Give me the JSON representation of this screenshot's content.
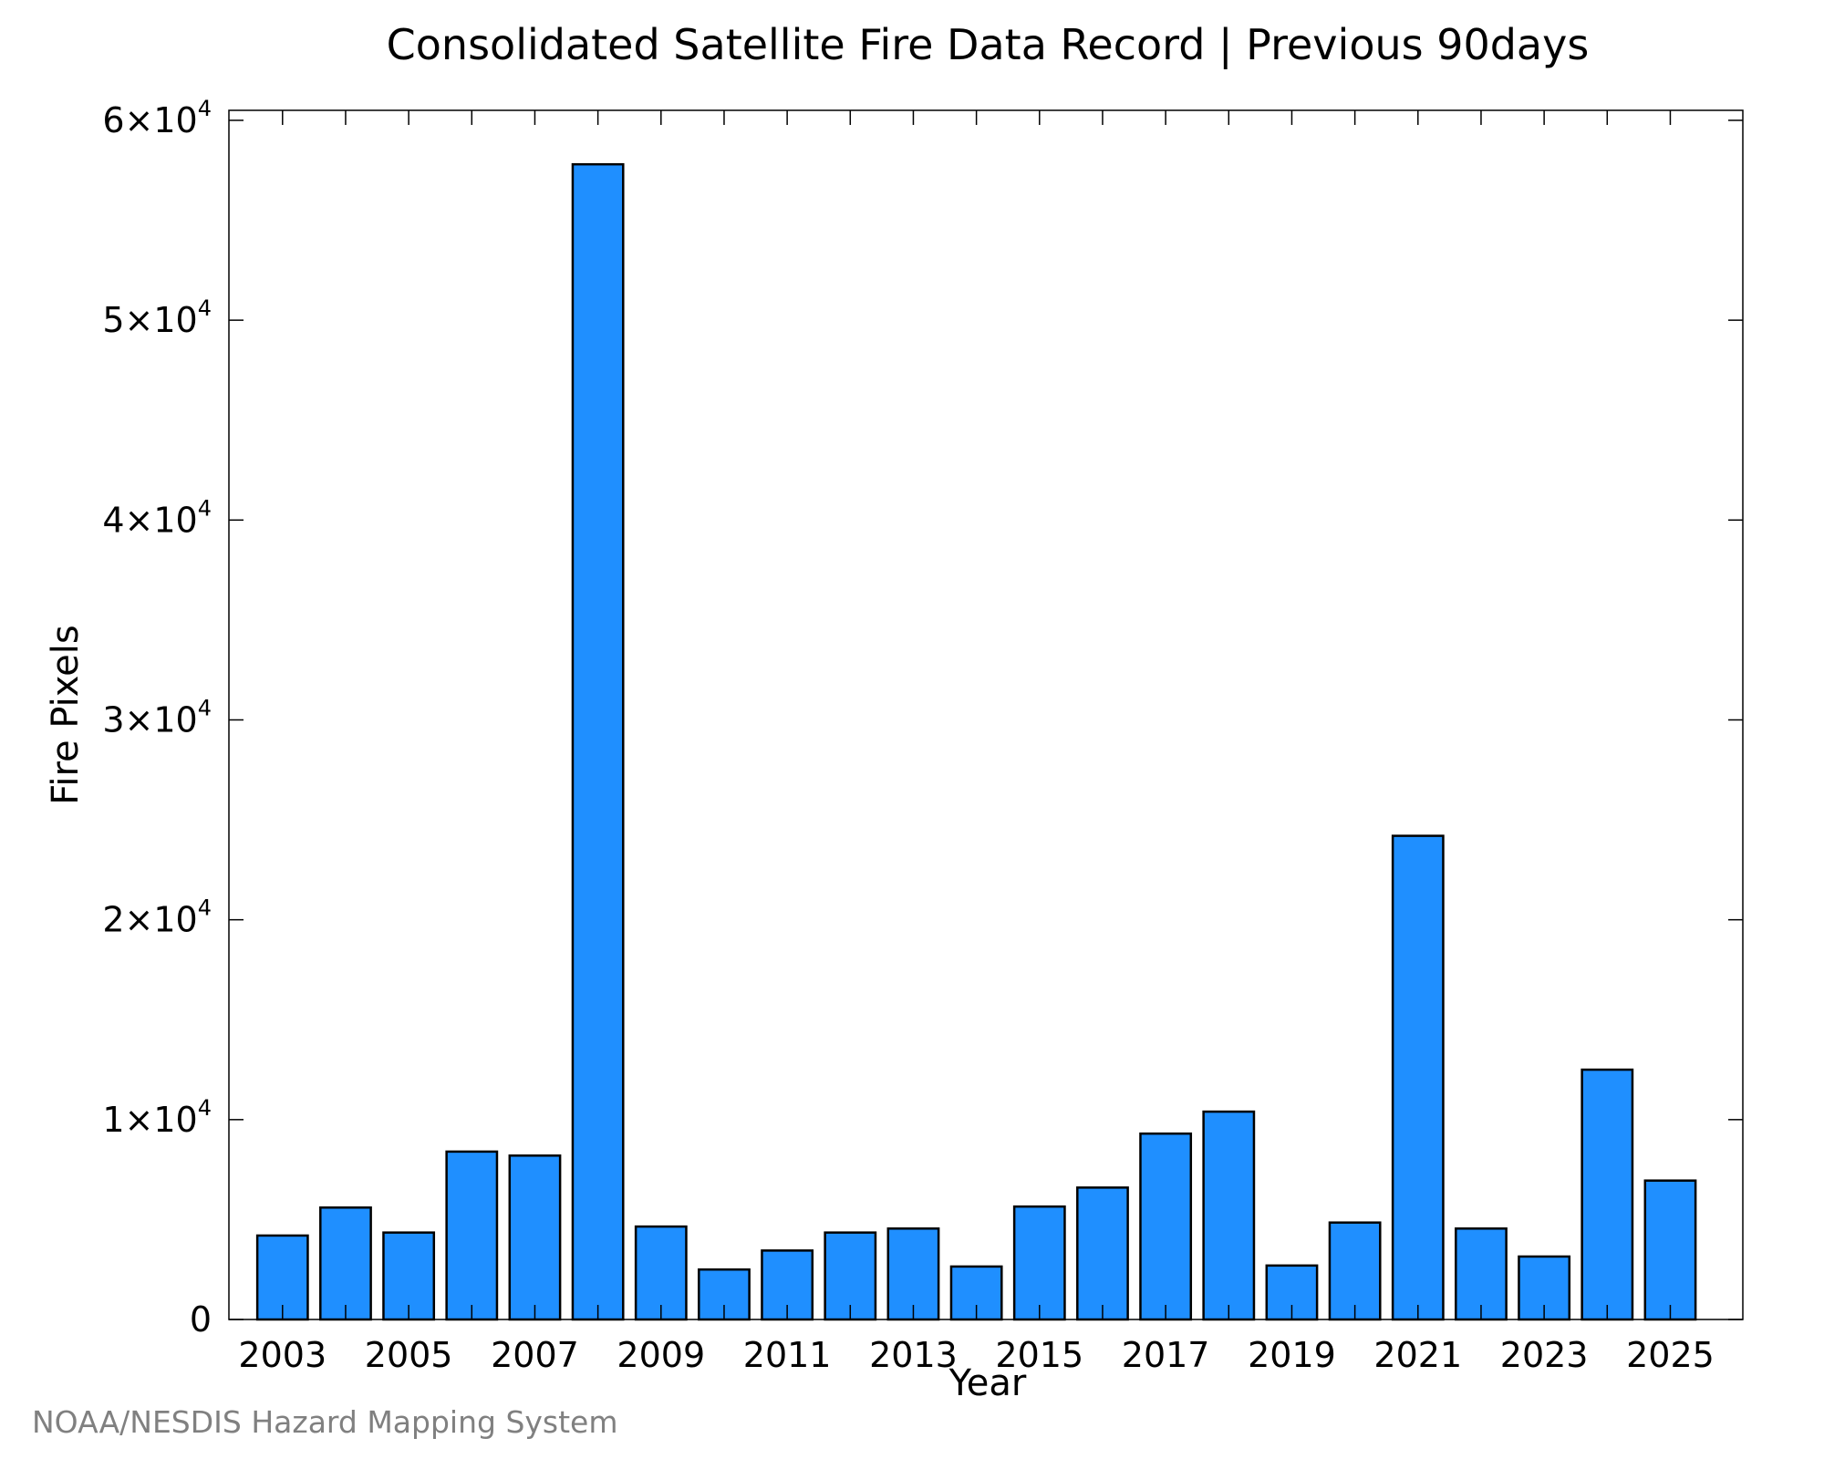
{
  "chart_data": {
    "type": "bar",
    "title": "Consolidated Satellite Fire Data Record | Previous 90days",
    "xlabel": "Year",
    "ylabel": "Fire Pixels",
    "categories": [
      "2003",
      "2004",
      "2005",
      "2006",
      "2007",
      "2008",
      "2009",
      "2010",
      "2011",
      "2012",
      "2013",
      "2014",
      "2015",
      "2016",
      "2017",
      "2018",
      "2019",
      "2020",
      "2021",
      "2022",
      "2023",
      "2024",
      "2025"
    ],
    "values": [
      4200,
      5600,
      4350,
      8400,
      8200,
      57800,
      4650,
      2500,
      3450,
      4350,
      4550,
      2650,
      5650,
      6600,
      9300,
      10400,
      2700,
      4850,
      24200,
      4550,
      3150,
      12500,
      6950
    ],
    "xtick_labels": [
      "2003",
      "2005",
      "2007",
      "2009",
      "2011",
      "2013",
      "2015",
      "2017",
      "2019",
      "2021",
      "2023",
      "2025"
    ],
    "yticks": [
      {
        "value": 0,
        "label": "0"
      },
      {
        "value": 10000,
        "mantissa": "1×10",
        "exp": "4"
      },
      {
        "value": 20000,
        "mantissa": "2×10",
        "exp": "4"
      },
      {
        "value": 30000,
        "mantissa": "3×10",
        "exp": "4"
      },
      {
        "value": 40000,
        "mantissa": "4×10",
        "exp": "4"
      },
      {
        "value": 50000,
        "mantissa": "5×10",
        "exp": "4"
      },
      {
        "value": 60000,
        "mantissa": "6×10",
        "exp": "4"
      }
    ],
    "ylim": [
      0,
      60500
    ],
    "xlim": [
      2002.15,
      2026.15
    ],
    "grid": false,
    "bar_color": "#1f8fff",
    "edge_color": "#000000"
  },
  "credit": "NOAA/NESDIS Hazard Mapping System"
}
